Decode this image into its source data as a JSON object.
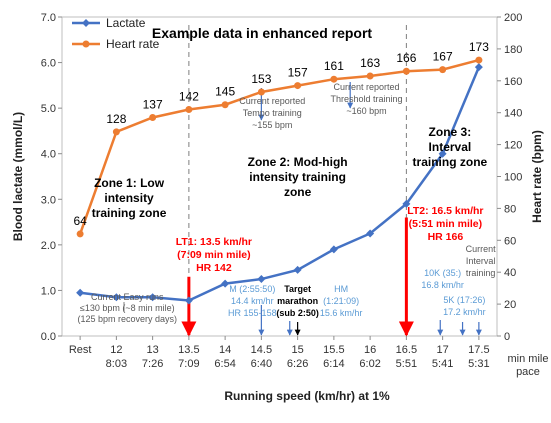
{
  "chart_data": {
    "type": "line",
    "title": "Example data in enhanced report",
    "xlabel": "Running speed (km/hr) at 1%",
    "ylabel_left": "Blood lactate (mmol/L)",
    "ylabel_right": "Heart rate (bpm)",
    "pace_axis_label": "min mile pace",
    "categories": [
      "Rest",
      "12",
      "13",
      "13.5",
      "14",
      "14.5",
      "15",
      "15.5",
      "16",
      "16.5",
      "17",
      "17.5"
    ],
    "pace": [
      "",
      "8:03",
      "7:26",
      "7:09",
      "6:54",
      "6:40",
      "6:26",
      "6:14",
      "6:02",
      "5:51",
      "5:41",
      "5:31"
    ],
    "ylim_left": [
      0,
      7
    ],
    "ylim_right": [
      0,
      200
    ],
    "yticks_left": [
      "0.0",
      "1.0",
      "2.0",
      "3.0",
      "4.0",
      "5.0",
      "6.0",
      "7.0"
    ],
    "yticks_right": [
      "0",
      "20",
      "40",
      "60",
      "80",
      "100",
      "120",
      "140",
      "160",
      "180",
      "200"
    ],
    "series": [
      {
        "name": "Lactate",
        "axis": "left",
        "color": "#4472c4",
        "values": [
          0.95,
          0.85,
          0.85,
          0.78,
          1.15,
          1.25,
          1.45,
          1.9,
          2.25,
          2.9,
          4.0,
          5.9
        ]
      },
      {
        "name": "Heart rate",
        "axis": "right",
        "color": "#ed7d31",
        "values": [
          64,
          128,
          137,
          142,
          145,
          153,
          157,
          161,
          163,
          166,
          167,
          173
        ]
      }
    ],
    "legend_position": "top-left",
    "grid": false,
    "zones": [
      {
        "lines": [
          "Zone 1: Low",
          "intensity",
          "training zone"
        ]
      },
      {
        "lines": [
          "Zone 2: Mod-high",
          "intensity training",
          "zone"
        ]
      },
      {
        "lines": [
          "Zone 3:",
          "Interval",
          "training zone"
        ]
      }
    ],
    "thresholds": [
      {
        "lines": [
          "LT1: 13.5 km/hr",
          "(7:09 min mile)",
          "HR 142"
        ]
      },
      {
        "lines": [
          "LT2: 16.5 km/hr",
          "(5:51 min mile)",
          "HR 166"
        ]
      }
    ],
    "annotations": {
      "easy_runs": [
        "Current Easy runs",
        "≤130 bpm (~8 min mile)",
        "(125 bpm recovery days)"
      ],
      "tempo": [
        "Current reported",
        "Tempo training",
        "~155 bpm"
      ],
      "threshold_training": [
        "Current reported",
        "Threshold training",
        "~160 bpm"
      ],
      "marathon_pace": [
        "M (2:55:50)",
        "14.4 km/hr",
        "HR 155-158"
      ],
      "target_marathon": [
        "Target",
        "marathon",
        "(sub 2:50)"
      ],
      "half_marathon": [
        "HM",
        "(1:21:09)",
        "15.6 km/hr"
      ],
      "ten_k": [
        "10K (35:)",
        "16.8 km/hr"
      ],
      "five_k": [
        "5K (17:26)",
        "17.2 km/hr"
      ],
      "interval": [
        "Current",
        "Interval",
        "training"
      ]
    }
  }
}
